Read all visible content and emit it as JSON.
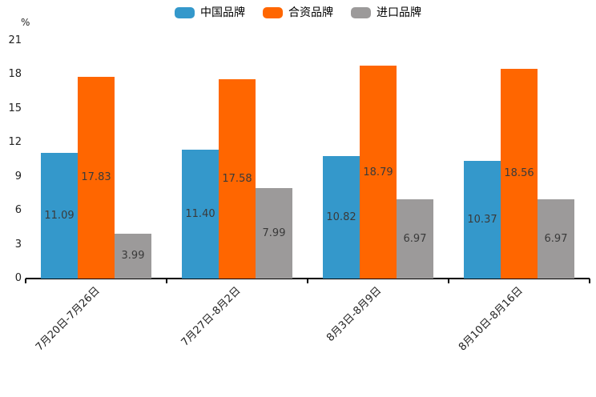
{
  "legend": {
    "items": [
      {
        "label": "中国品牌",
        "color": "#3498CB"
      },
      {
        "label": "合资品牌",
        "color": "#FF6600"
      },
      {
        "label": "进口品牌",
        "color": "#9C9A9A"
      }
    ]
  },
  "chart_data": {
    "type": "bar",
    "title": "",
    "ylabel": "%",
    "xlabel": "",
    "categories": [
      "7月20日-7月26日",
      "7月27日-8月2日",
      "8月3日-8月9日",
      "8月10日-8月16日"
    ],
    "series": [
      {
        "name": "中国品牌",
        "color": "#3498CB",
        "values": [
          11.09,
          11.4,
          10.82,
          10.37
        ],
        "display_values": [
          "11.09",
          "11.40",
          "10.82",
          "10.37"
        ]
      },
      {
        "name": "合资品牌",
        "color": "#FF6600",
        "values": [
          17.83,
          17.58,
          18.79,
          18.56
        ],
        "display_values": [
          "17.83",
          "17.58",
          "18.79",
          "18.56"
        ]
      },
      {
        "name": "进口品牌",
        "color": "#9C9A9A",
        "values": [
          3.99,
          7.99,
          6.97,
          6.97
        ],
        "display_values": [
          "3.99",
          "7.99",
          "6.97",
          "6.97"
        ]
      }
    ],
    "ylim": [
      0,
      21
    ],
    "yticks": [
      0,
      3,
      6,
      9,
      12,
      15,
      18,
      21
    ],
    "grid": false,
    "legend_position": "top",
    "value_label_position": "inside-center",
    "x_label_rotation": 45
  }
}
